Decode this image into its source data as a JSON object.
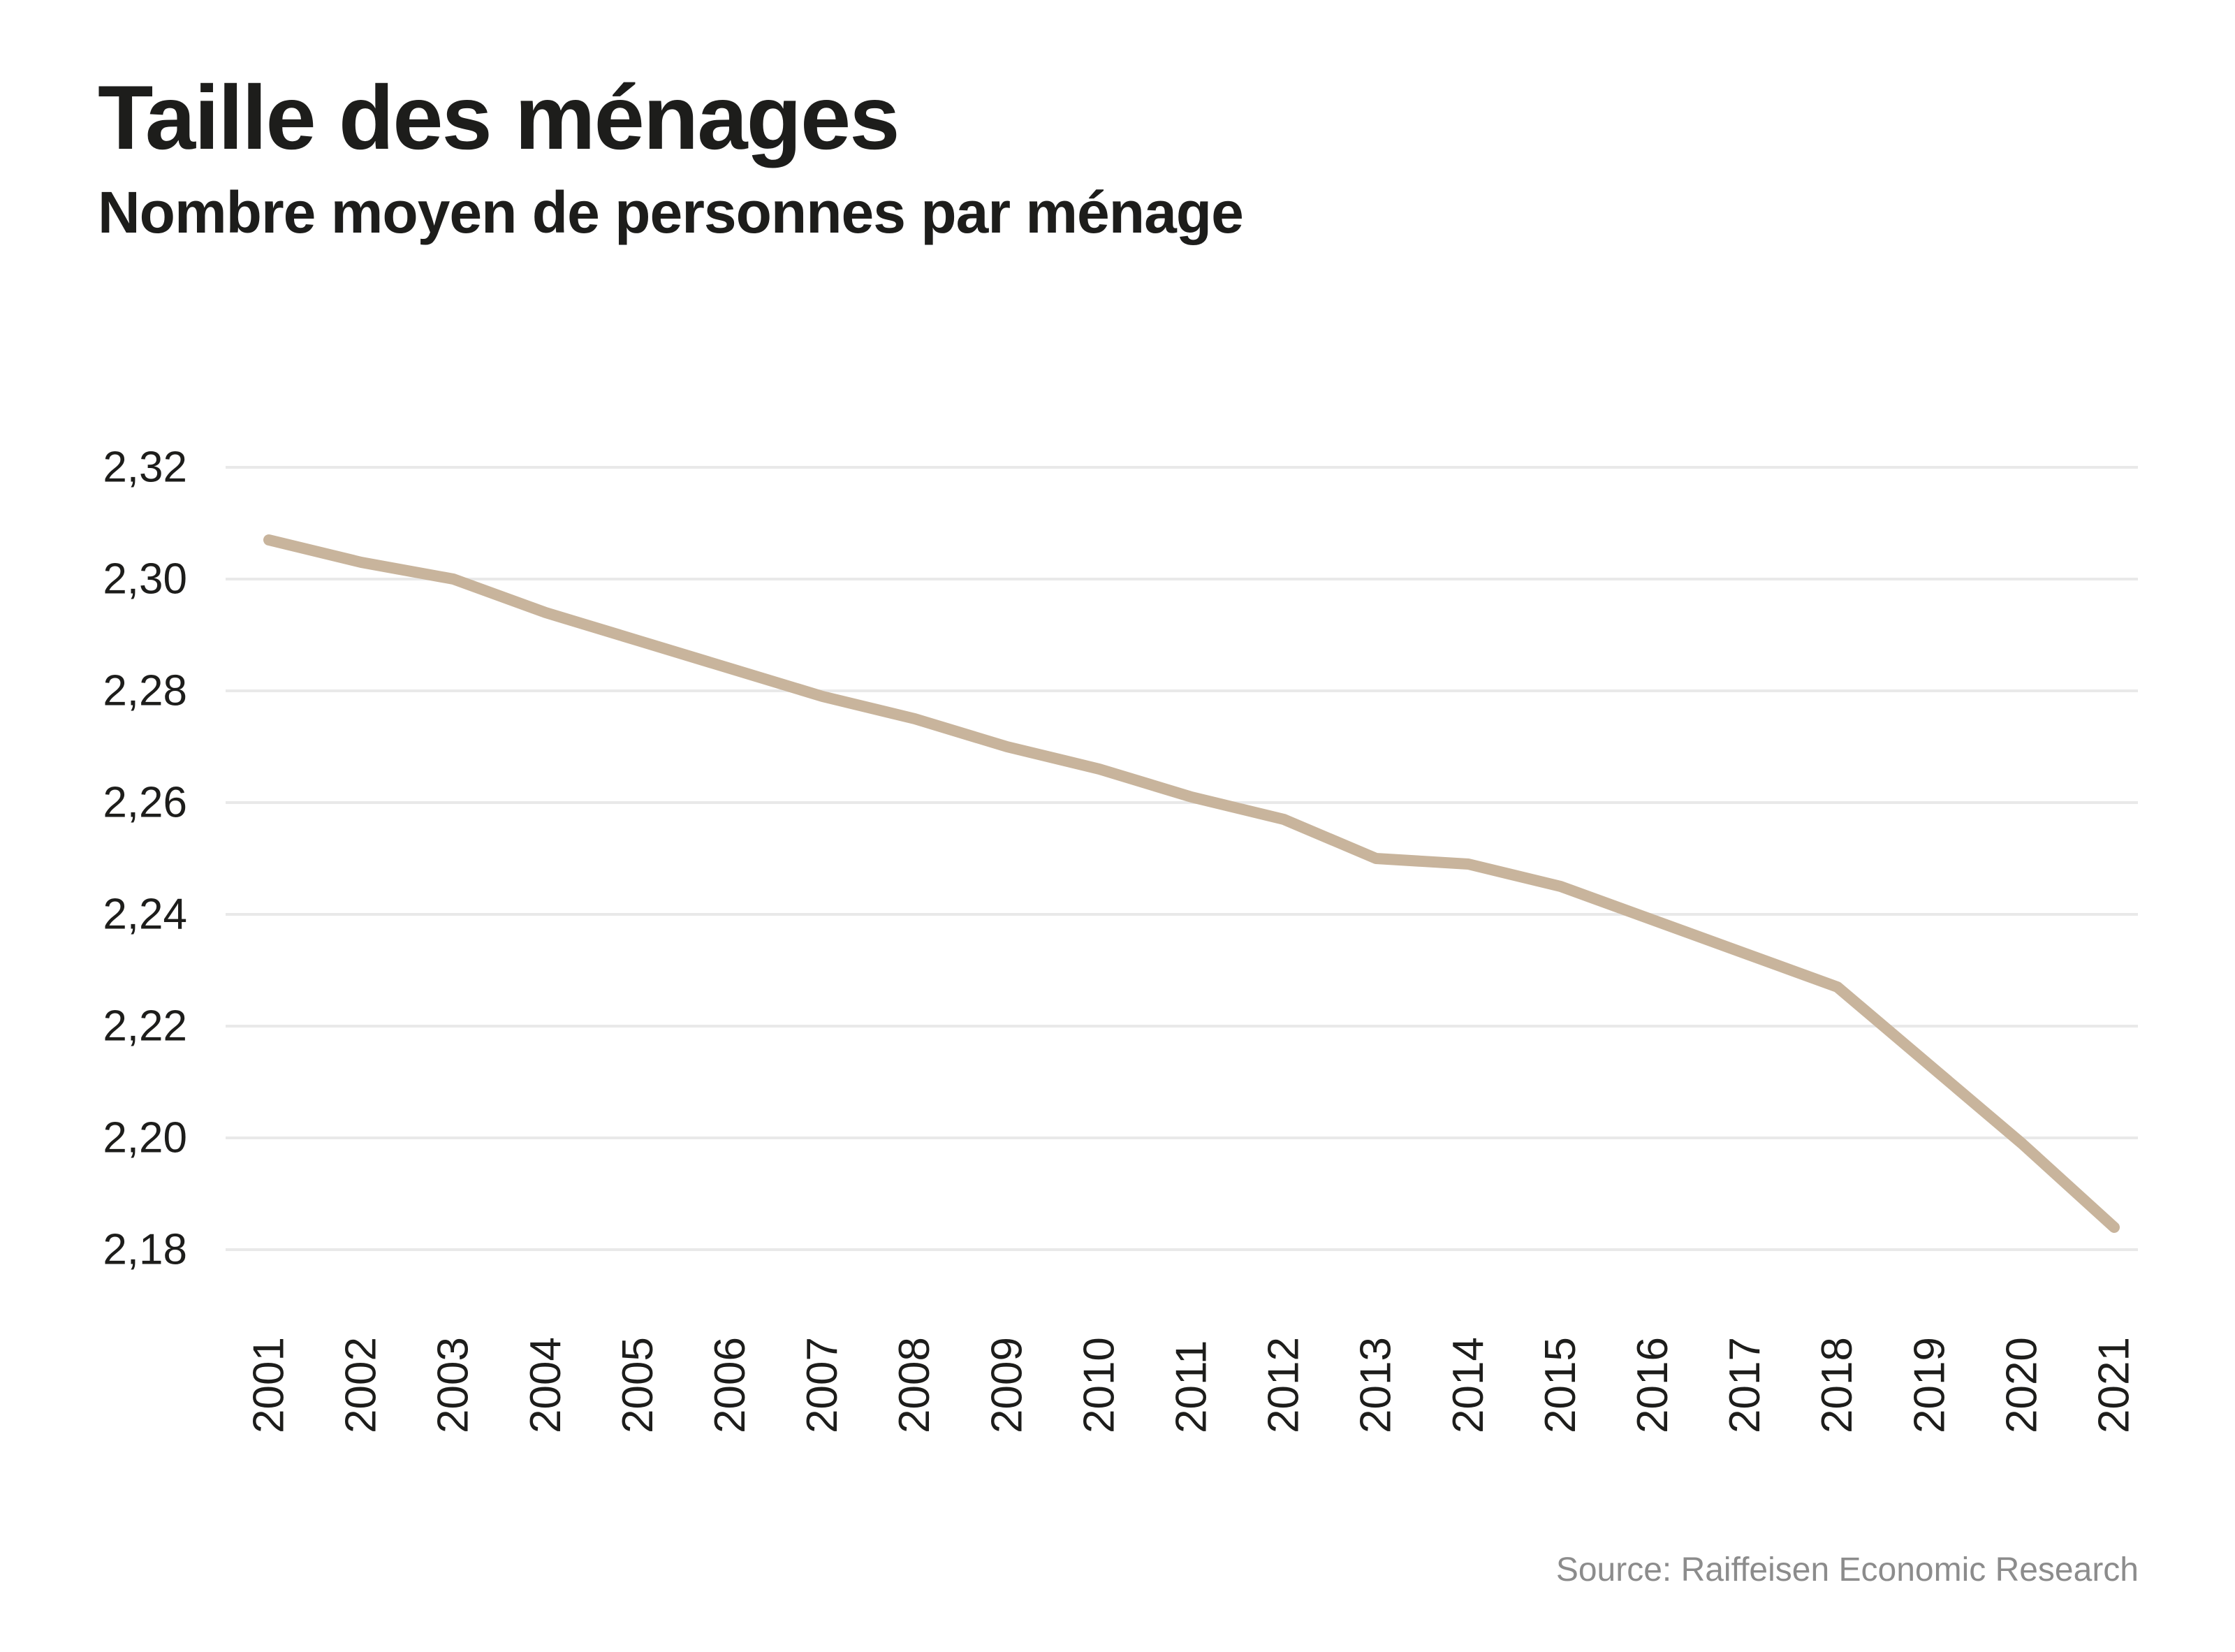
{
  "header": {
    "title": "Taille des ménages",
    "subtitle": "Nombre moyen de personnes par ménage"
  },
  "footer": {
    "source": "Source: Raiffeisen Economic Research"
  },
  "colors": {
    "line": "#C8B49C",
    "grid": "#E9E9E9",
    "text": "#1D1D1B",
    "source_text": "#8C8C8C",
    "background": "#FFFFFF"
  },
  "chart_data": {
    "type": "line",
    "title": "Taille des ménages",
    "subtitle": "Nombre moyen de personnes par ménage",
    "x": [
      2001,
      2002,
      2003,
      2004,
      2005,
      2006,
      2007,
      2008,
      2009,
      2010,
      2011,
      2012,
      2013,
      2014,
      2015,
      2016,
      2017,
      2018,
      2019,
      2020,
      2021
    ],
    "x_labels": [
      "2001",
      "2002",
      "2003",
      "2004",
      "2005",
      "2006",
      "2007",
      "2008",
      "2009",
      "2010",
      "2011",
      "2012",
      "2013",
      "2014",
      "2015",
      "2016",
      "2017",
      "2018",
      "2019",
      "2020",
      "2021"
    ],
    "series": [
      {
        "name": "Nombre moyen de personnes par ménage",
        "values": [
          2.307,
          2.303,
          2.3,
          2.294,
          2.289,
          2.284,
          2.279,
          2.275,
          2.27,
          2.266,
          2.261,
          2.257,
          2.25,
          2.249,
          2.245,
          2.239,
          2.233,
          2.227,
          2.213,
          2.199,
          2.184
        ]
      }
    ],
    "xlabel": "",
    "ylabel": "",
    "ylim": [
      2.17,
      2.33
    ],
    "yticks": [
      2.32,
      2.3,
      2.28,
      2.26,
      2.24,
      2.22,
      2.2,
      2.18
    ],
    "ytick_labels": [
      "2,32",
      "2,30",
      "2,28",
      "2,26",
      "2,24",
      "2,22",
      "2,20",
      "2,18"
    ],
    "grid": "horizontal-only",
    "legend": "none",
    "x_tick_rotation_deg": -90,
    "decimal_separator": ","
  }
}
